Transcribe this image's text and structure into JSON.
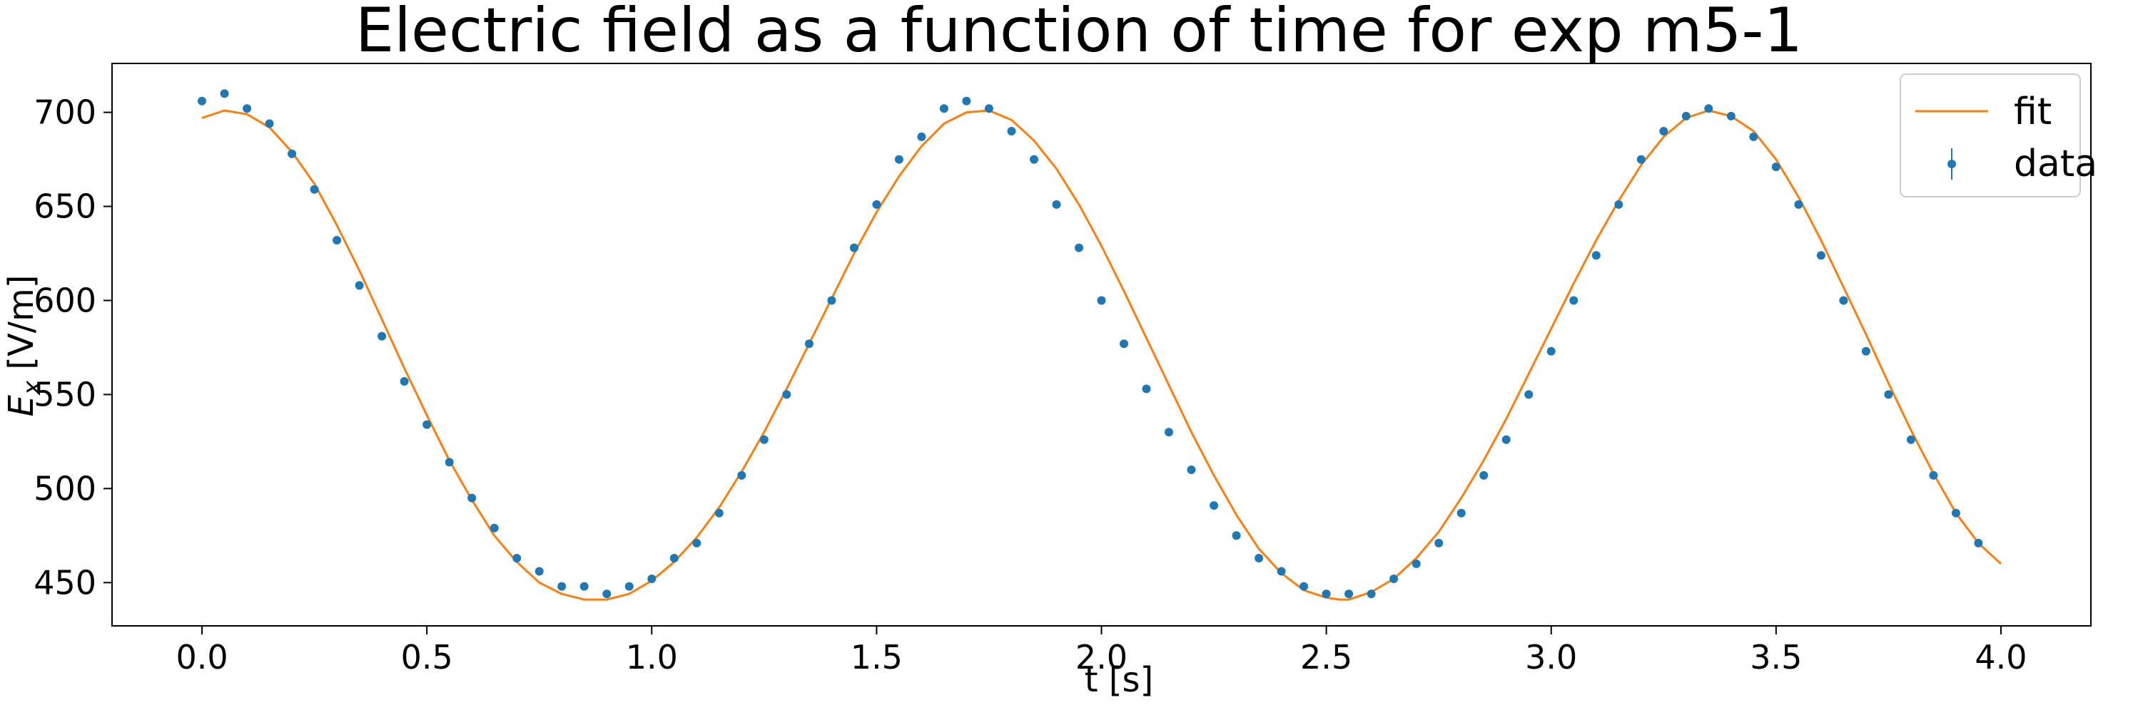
{
  "chart_data": {
    "type": "scatter",
    "title": "Electric field as a function of time for exp m5-1",
    "xlabel": "t [s]",
    "ylabel_main": "E",
    "ylabel_sub": "x",
    "ylabel_unit": " [V/m]",
    "xlim": [
      -0.2,
      4.2
    ],
    "ylim": [
      427,
      726
    ],
    "xticks": [
      0.0,
      0.5,
      1.0,
      1.5,
      2.0,
      2.5,
      3.0,
      3.5,
      4.0
    ],
    "xtick_labels": [
      "0.0",
      "0.5",
      "1.0",
      "1.5",
      "2.0",
      "2.5",
      "3.0",
      "3.5",
      "4.0"
    ],
    "yticks": [
      450,
      500,
      550,
      600,
      650,
      700
    ],
    "ytick_labels": [
      "450",
      "500",
      "550",
      "600",
      "650",
      "700"
    ],
    "grid": false,
    "legend_placement": "top-right",
    "colors": {
      "data": "#1f77b4",
      "fit": "#ff7f0e"
    },
    "series": [
      {
        "name": "fit",
        "kind": "line",
        "x": [
          0.0,
          0.05,
          0.1,
          0.15,
          0.2,
          0.25,
          0.3,
          0.35,
          0.4,
          0.45,
          0.5,
          0.55,
          0.6,
          0.65,
          0.7,
          0.75,
          0.8,
          0.85,
          0.88,
          0.9,
          0.95,
          1.0,
          1.05,
          1.1,
          1.15,
          1.2,
          1.25,
          1.3,
          1.35,
          1.4,
          1.45,
          1.5,
          1.55,
          1.6,
          1.65,
          1.7,
          1.75,
          1.8,
          1.85,
          1.9,
          1.95,
          2.0,
          2.05,
          2.1,
          2.15,
          2.2,
          2.25,
          2.3,
          2.35,
          2.4,
          2.45,
          2.5,
          2.53,
          2.55,
          2.6,
          2.65,
          2.7,
          2.75,
          2.8,
          2.85,
          2.9,
          2.95,
          3.0,
          3.05,
          3.1,
          3.15,
          3.2,
          3.25,
          3.3,
          3.35,
          3.4,
          3.45,
          3.5,
          3.55,
          3.6,
          3.65,
          3.7,
          3.75,
          3.8,
          3.85,
          3.9,
          3.95,
          4.0
        ],
        "y": [
          697,
          701,
          699,
          692,
          679,
          662,
          640,
          616,
          590,
          564,
          539,
          515,
          494,
          475,
          461,
          450,
          444,
          441,
          441,
          441,
          444,
          451,
          461,
          474,
          490,
          509,
          530,
          553,
          577,
          601,
          625,
          647,
          666,
          682,
          694,
          700,
          701,
          696,
          685,
          670,
          651,
          629,
          605,
          580,
          555,
          530,
          507,
          486,
          468,
          455,
          446,
          442,
          441,
          441,
          445,
          452,
          463,
          477,
          495,
          515,
          537,
          561,
          585,
          609,
          632,
          653,
          672,
          687,
          697,
          701,
          698,
          690,
          675,
          655,
          632,
          607,
          582,
          556,
          531,
          508,
          487,
          471,
          460
        ]
      },
      {
        "name": "data",
        "kind": "scatter",
        "x": [
          0.0,
          0.05,
          0.1,
          0.15,
          0.2,
          0.25,
          0.3,
          0.35,
          0.4,
          0.45,
          0.5,
          0.55,
          0.6,
          0.65,
          0.7,
          0.75,
          0.8,
          0.85,
          0.9,
          0.95,
          1.0,
          1.05,
          1.1,
          1.15,
          1.2,
          1.25,
          1.3,
          1.35,
          1.4,
          1.45,
          1.5,
          1.55,
          1.6,
          1.65,
          1.7,
          1.75,
          1.8,
          1.85,
          1.9,
          1.95,
          2.0,
          2.05,
          2.1,
          2.15,
          2.2,
          2.25,
          2.3,
          2.35,
          2.4,
          2.45,
          2.5,
          2.55,
          2.6,
          2.65,
          2.7,
          2.75,
          2.8,
          2.85,
          2.9,
          2.95,
          3.0,
          3.05,
          3.1,
          3.15,
          3.2,
          3.25,
          3.3,
          3.35,
          3.4,
          3.45,
          3.5,
          3.55,
          3.6,
          3.65,
          3.7,
          3.75,
          3.8,
          3.85,
          3.9,
          3.95
        ],
        "y": [
          706,
          710,
          702,
          694,
          678,
          659,
          632,
          608,
          581,
          557,
          534,
          514,
          495,
          479,
          463,
          456,
          448,
          448,
          444,
          448,
          452,
          463,
          471,
          487,
          507,
          526,
          550,
          577,
          600,
          628,
          651,
          675,
          687,
          702,
          706,
          702,
          690,
          675,
          651,
          628,
          600,
          577,
          553,
          530,
          510,
          491,
          475,
          463,
          456,
          448,
          444,
          444,
          444,
          452,
          460,
          471,
          487,
          507,
          526,
          550,
          573,
          600,
          624,
          651,
          675,
          690,
          698,
          702,
          698,
          687,
          671,
          651,
          624,
          600,
          573,
          550,
          526,
          507,
          487,
          471
        ]
      }
    ]
  }
}
